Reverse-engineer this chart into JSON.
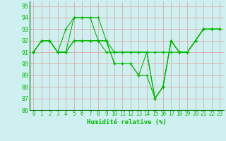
{
  "xlabel": "Humidité relative (%)",
  "bg_color": "#cff0f0",
  "grid_color": "#bbdddd",
  "line_color": "#00bb00",
  "ylim": [
    86,
    95.4
  ],
  "xlim": [
    -0.5,
    23.5
  ],
  "yticks": [
    86,
    87,
    88,
    89,
    90,
    91,
    92,
    93,
    94,
    95
  ],
  "xticks": [
    0,
    1,
    2,
    3,
    4,
    5,
    6,
    7,
    8,
    9,
    10,
    11,
    12,
    13,
    14,
    15,
    16,
    17,
    18,
    19,
    20,
    21,
    22,
    23
  ],
  "series": [
    [
      91,
      92,
      92,
      91,
      93,
      94,
      94,
      94,
      94,
      92,
      91,
      91,
      91,
      91,
      91,
      91,
      91,
      91,
      91,
      91,
      92,
      93,
      93,
      93
    ],
    [
      91,
      92,
      92,
      91,
      91,
      94,
      94,
      94,
      92,
      91,
      91,
      91,
      91,
      91,
      91,
      87,
      88,
      92,
      91,
      91,
      92,
      93,
      93,
      93
    ],
    [
      91,
      92,
      92,
      91,
      91,
      92,
      92,
      92,
      92,
      92,
      90,
      90,
      90,
      89,
      89,
      87,
      88,
      92,
      91,
      91,
      92,
      93,
      93,
      93
    ],
    [
      91,
      92,
      92,
      91,
      91,
      92,
      92,
      92,
      92,
      92,
      90,
      90,
      90,
      89,
      91,
      87,
      88,
      92,
      91,
      91,
      92,
      93,
      93,
      93
    ]
  ]
}
